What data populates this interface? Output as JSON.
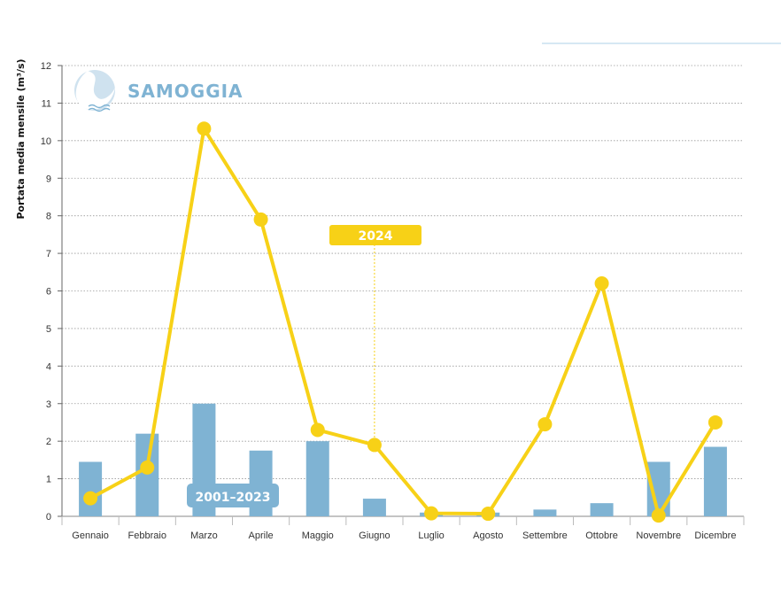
{
  "chart_data": {
    "type": "bar",
    "ylabel": "Portata media mensile (m³/s)",
    "ylim": [
      0,
      12
    ],
    "yticks": [
      0,
      1,
      2,
      3,
      4,
      5,
      6,
      7,
      8,
      9,
      10,
      11,
      12
    ],
    "grid": "dotted horizontal",
    "categories": [
      "Gennaio",
      "Febbraio",
      "Marzo",
      "Aprile",
      "Maggio",
      "Giugno",
      "Luglio",
      "Agosto",
      "Settembre",
      "Ottobre",
      "Novembre",
      "Dicembre"
    ],
    "series": [
      {
        "name": "2001–2023",
        "kind": "bar",
        "color": "#7fb3d3",
        "values": [
          1.45,
          2.2,
          3.0,
          1.75,
          2.0,
          0.47,
          0.1,
          0.1,
          0.18,
          0.35,
          1.45,
          1.85
        ]
      },
      {
        "name": "2024",
        "kind": "line",
        "color": "#f7d117",
        "values": [
          0.48,
          1.3,
          10.32,
          7.9,
          2.3,
          1.9,
          0.08,
          0.07,
          2.45,
          6.2,
          0.02,
          2.5
        ]
      }
    ]
  },
  "brand": {
    "name": "SAMOGGIA",
    "logo_icon": "river-drop-icon"
  },
  "labels": {
    "bars": "2001–2023",
    "line": "2024"
  }
}
